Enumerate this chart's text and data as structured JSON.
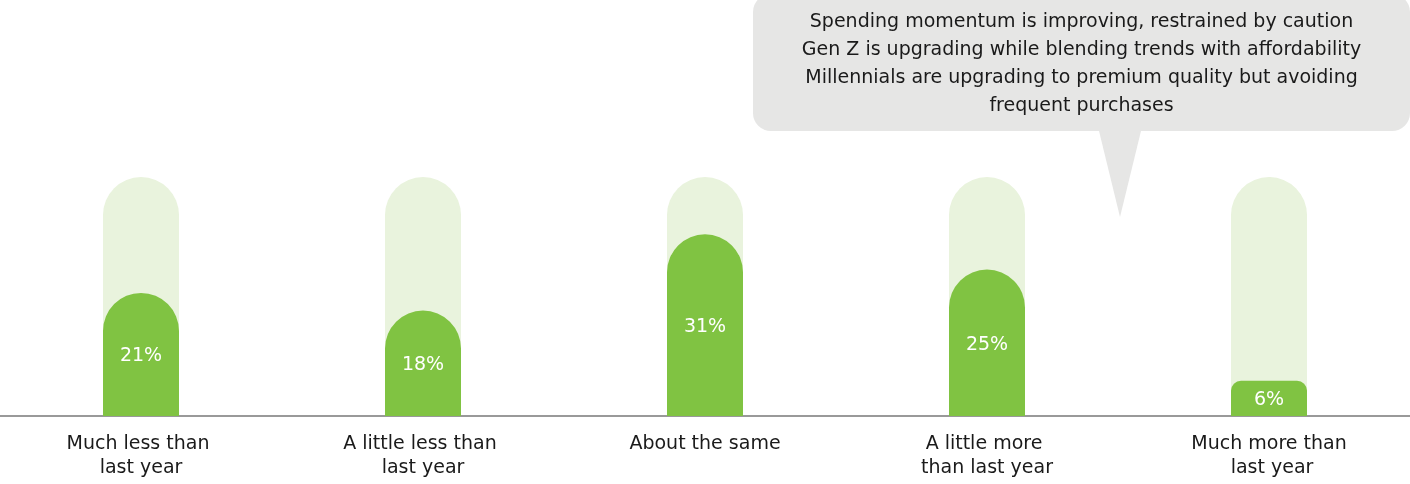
{
  "chart_data": {
    "type": "bar",
    "categories": [
      "Much less than last year",
      "A little less than last year",
      "About the same",
      "A little more than last year",
      "Much more than last year"
    ],
    "values": [
      21,
      18,
      31,
      25,
      6
    ],
    "color": "#80c342",
    "value_labels": [
      "21%",
      "18%",
      "31%",
      "25%",
      "6%"
    ],
    "annotations": [
      "Spending momentum is improving, restrained by caution\nGen Z is upgrading while blending trends with affordability\nMillennials are upgrading to premium quality but avoiding\nfrequent purchases"
    ]
  }
}
